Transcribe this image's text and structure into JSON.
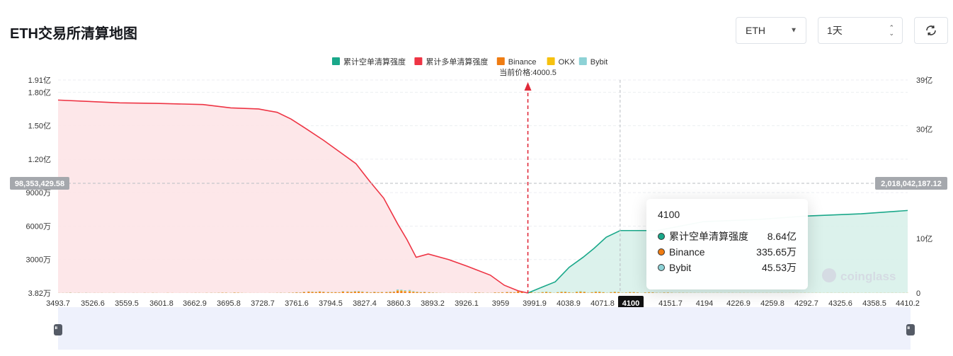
{
  "title": "ETH交易所清算地图",
  "controls": {
    "coin": "ETH",
    "period": "1天"
  },
  "chart_data": {
    "type": "bar",
    "legend": [
      {
        "name": "累计空单清算强度",
        "color": "#1aa88a"
      },
      {
        "name": "累计多单清算强度",
        "color": "#ee3444"
      },
      {
        "name": "Binance",
        "color": "#ef7c12"
      },
      {
        "name": "OKX",
        "color": "#f6c10f"
      },
      {
        "name": "Bybit",
        "color": "#8dd2d6"
      }
    ],
    "current_price_label": "当前价格:4000.5",
    "current_price": 4000.5,
    "x_ticks": [
      "3493.7",
      "3526.6",
      "3559.5",
      "3601.8",
      "3662.9",
      "3695.8",
      "3728.7",
      "3761.6",
      "3794.5",
      "3827.4",
      "3860.3",
      "3893.2",
      "3926.1",
      "3959",
      "3991.9",
      "4038.9",
      "4071.8",
      "4100",
      "4151.7",
      "4194",
      "4226.9",
      "4259.8",
      "4292.7",
      "4325.6",
      "4358.5",
      "4410.2"
    ],
    "x_range": [
      3493.7,
      4410.2
    ],
    "left_axis": {
      "ticks": [
        "3.82万",
        "3000万",
        "6000万",
        "9000万",
        "1.20亿",
        "1.50亿",
        "1.80亿",
        "1.91亿"
      ],
      "values": [
        38200,
        30000000,
        60000000,
        90000000,
        120000000,
        150000000,
        180000000,
        191000000
      ]
    },
    "right_axis": {
      "ticks": [
        "0",
        "10亿",
        "20亿",
        "30亿",
        "39亿"
      ],
      "values": [
        0,
        1000000000,
        2000000000,
        3000000000,
        3900000000
      ]
    },
    "crosshair": {
      "x_label": "4100",
      "left_value": "98,353,429.58",
      "right_value": "2,018,042,187.12"
    },
    "long_cumulative": [
      [
        3493.7,
        1730
      ],
      [
        3520,
        1720
      ],
      [
        3560,
        1705
      ],
      [
        3600,
        1700
      ],
      [
        3650,
        1690
      ],
      [
        3680,
        1660
      ],
      [
        3710,
        1650
      ],
      [
        3730,
        1620
      ],
      [
        3745,
        1560
      ],
      [
        3760,
        1480
      ],
      [
        3780,
        1370
      ],
      [
        3800,
        1250
      ],
      [
        3815,
        1160
      ],
      [
        3830,
        1000
      ],
      [
        3845,
        850
      ],
      [
        3860,
        620
      ],
      [
        3870,
        480
      ],
      [
        3880,
        320
      ],
      [
        3893,
        350
      ],
      [
        3915,
        300
      ],
      [
        3935,
        240
      ],
      [
        3960,
        160
      ],
      [
        3975,
        70
      ],
      [
        3990,
        20
      ],
      [
        4000.5,
        0
      ]
    ],
    "short_cumulative": [
      [
        4000.5,
        0
      ],
      [
        4015,
        50
      ],
      [
        4030,
        100
      ],
      [
        4045,
        230
      ],
      [
        4060,
        320
      ],
      [
        4071.8,
        400
      ],
      [
        4085,
        500
      ],
      [
        4100,
        560
      ],
      [
        4140,
        560
      ],
      [
        4190,
        640
      ],
      [
        4250,
        660
      ],
      [
        4300,
        690
      ],
      [
        4360,
        710
      ],
      [
        4410.2,
        740
      ]
    ],
    "bars_note": "Per-price liquidation leverage bars stacked Binance/OKX/Bybit, values in 万 (approx).",
    "bars": [
      [
        3495,
        2,
        1,
        3
      ],
      [
        3499,
        3,
        1,
        4
      ],
      [
        3503,
        4,
        2,
        5
      ],
      [
        3507,
        8,
        4,
        10
      ],
      [
        3512,
        3,
        1,
        4
      ],
      [
        3516,
        6,
        2,
        6
      ],
      [
        3520,
        2,
        1,
        2
      ],
      [
        3524,
        5,
        2,
        7
      ],
      [
        3528,
        2,
        1,
        3
      ],
      [
        3533,
        3,
        1,
        3
      ],
      [
        3537,
        2,
        1,
        2
      ],
      [
        3541,
        4,
        1,
        4
      ],
      [
        3545,
        1,
        1,
        1
      ],
      [
        3549,
        2,
        1,
        3
      ],
      [
        3554,
        5,
        2,
        4
      ],
      [
        3558,
        1,
        0,
        1
      ],
      [
        3562,
        1,
        0,
        1
      ],
      [
        3566,
        2,
        1,
        2
      ],
      [
        3570,
        1,
        0,
        2
      ],
      [
        3575,
        3,
        1,
        3
      ],
      [
        3579,
        2,
        1,
        2
      ],
      [
        3583,
        1,
        0,
        1
      ],
      [
        3587,
        5,
        1,
        3
      ],
      [
        3591,
        2,
        1,
        1
      ],
      [
        3596,
        6,
        2,
        4
      ],
      [
        3600,
        3,
        1,
        2
      ],
      [
        3604,
        1,
        0,
        1
      ],
      [
        3608,
        1,
        1,
        1
      ],
      [
        3612,
        5,
        2,
        3
      ],
      [
        3617,
        3,
        1,
        1
      ],
      [
        3621,
        1,
        0,
        0
      ],
      [
        3625,
        2,
        0,
        1
      ],
      [
        3629,
        1,
        0,
        1
      ],
      [
        3633,
        2,
        1,
        2
      ],
      [
        3638,
        3,
        0,
        1
      ],
      [
        3642,
        5,
        2,
        3
      ],
      [
        3646,
        4,
        1,
        3
      ],
      [
        3650,
        2,
        1,
        1
      ],
      [
        3654,
        6,
        3,
        4
      ],
      [
        3659,
        7,
        3,
        5
      ],
      [
        3663,
        4,
        2,
        3
      ],
      [
        3667,
        8,
        4,
        6
      ],
      [
        3671,
        12,
        4,
        4
      ],
      [
        3675,
        10,
        5,
        5
      ],
      [
        3680,
        6,
        3,
        4
      ],
      [
        3684,
        13,
        6,
        6
      ],
      [
        3688,
        11,
        5,
        4
      ],
      [
        3692,
        5,
        3,
        4
      ],
      [
        3696,
        2,
        1,
        2
      ],
      [
        3701,
        2,
        1,
        1
      ],
      [
        3705,
        1,
        1,
        1
      ],
      [
        3709,
        1,
        1,
        2
      ],
      [
        3713,
        1,
        0,
        1
      ],
      [
        3717,
        1,
        1,
        1
      ],
      [
        3722,
        3,
        1,
        2
      ],
      [
        3726,
        2,
        1,
        2
      ],
      [
        3730,
        6,
        3,
        4
      ],
      [
        3734,
        8,
        4,
        6
      ],
      [
        3738,
        5,
        3,
        4
      ],
      [
        3743,
        9,
        4,
        6
      ],
      [
        3747,
        12,
        5,
        6
      ],
      [
        3751,
        18,
        8,
        10
      ],
      [
        3755,
        14,
        8,
        10
      ],
      [
        3759,
        36,
        10,
        13
      ],
      [
        3764,
        48,
        12,
        14
      ],
      [
        3768,
        40,
        15,
        16
      ],
      [
        3772,
        30,
        14,
        14
      ],
      [
        3776,
        50,
        15,
        15
      ],
      [
        3780,
        40,
        12,
        15
      ],
      [
        3785,
        27,
        12,
        14
      ],
      [
        3789,
        22,
        10,
        12
      ],
      [
        3793,
        28,
        10,
        10
      ],
      [
        3797,
        22,
        8,
        10
      ],
      [
        3801,
        48,
        15,
        20
      ],
      [
        3806,
        44,
        15,
        18
      ],
      [
        3810,
        38,
        14,
        17
      ],
      [
        3814,
        50,
        18,
        22
      ],
      [
        3818,
        50,
        18,
        24
      ],
      [
        3822,
        40,
        16,
        20
      ],
      [
        3827,
        28,
        14,
        16
      ],
      [
        3831,
        18,
        8,
        12
      ],
      [
        3835,
        32,
        12,
        16
      ],
      [
        3839,
        24,
        10,
        12
      ],
      [
        3843,
        28,
        12,
        14
      ],
      [
        3848,
        30,
        12,
        14
      ],
      [
        3852,
        36,
        14,
        18
      ],
      [
        3856,
        44,
        14,
        18
      ],
      [
        3860,
        90,
        30,
        40
      ],
      [
        3864,
        80,
        30,
        40
      ],
      [
        3868,
        60,
        28,
        38
      ],
      [
        3873,
        55,
        34,
        50
      ],
      [
        3877,
        40,
        20,
        30
      ],
      [
        3881,
        30,
        14,
        20
      ],
      [
        3885,
        22,
        12,
        14
      ],
      [
        3889,
        30,
        12,
        14
      ],
      [
        3894,
        20,
        10,
        12
      ],
      [
        3898,
        12,
        8,
        10
      ],
      [
        3902,
        8,
        6,
        6
      ],
      [
        3906,
        4,
        2,
        4
      ],
      [
        3910,
        2,
        1,
        3
      ],
      [
        3915,
        1,
        1,
        1
      ],
      [
        3919,
        2,
        1,
        3
      ],
      [
        3923,
        4,
        2,
        4
      ],
      [
        3927,
        3,
        2,
        4
      ],
      [
        3931,
        2,
        1,
        3
      ],
      [
        3936,
        3,
        1,
        4
      ],
      [
        3940,
        6,
        3,
        4
      ],
      [
        3944,
        20,
        6,
        7
      ],
      [
        3948,
        14,
        5,
        6
      ],
      [
        3952,
        8,
        4,
        6
      ],
      [
        3957,
        6,
        4,
        6
      ],
      [
        3961,
        4,
        2,
        4
      ],
      [
        3965,
        20,
        6,
        6
      ],
      [
        3969,
        14,
        6,
        6
      ],
      [
        3973,
        22,
        8,
        10
      ],
      [
        3978,
        32,
        10,
        12
      ],
      [
        3982,
        28,
        10,
        10
      ],
      [
        3986,
        22,
        8,
        10
      ],
      [
        3990,
        60,
        18,
        26
      ],
      [
        3994,
        38,
        14,
        16
      ],
      [
        3999,
        14,
        6,
        8
      ]
    ]
  },
  "tooltip": {
    "title": "4100",
    "rows": [
      {
        "label": "累计空单清算强度",
        "value": "8.64亿",
        "color": "#1aa88a"
      },
      {
        "label": "Binance",
        "value": "335.65万",
        "color": "#ef7c12"
      },
      {
        "label": "Bybit",
        "value": "45.53万",
        "color": "#8dd2d6"
      }
    ]
  },
  "watermark": "coinglass"
}
